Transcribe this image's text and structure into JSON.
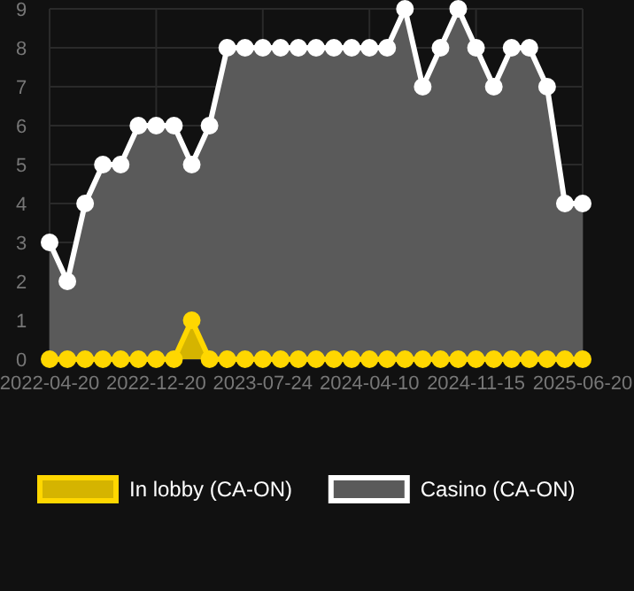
{
  "chart_data": {
    "type": "area",
    "categories": [
      "2022-04-20",
      null,
      null,
      null,
      null,
      null,
      "2022-12-20",
      null,
      null,
      null,
      null,
      null,
      "2023-07-24",
      null,
      null,
      null,
      null,
      null,
      "2024-04-10",
      null,
      null,
      null,
      null,
      null,
      "2024-11-15",
      null,
      null,
      null,
      null,
      null,
      "2025-06-20"
    ],
    "series": [
      {
        "name": "In lobby (CA-ON)",
        "color": "#ffd700",
        "values": [
          0,
          0,
          0,
          0,
          0,
          0,
          0,
          0,
          1,
          0,
          0,
          0,
          0,
          0,
          0,
          0,
          0,
          0,
          0,
          0,
          0,
          0,
          0,
          0,
          0,
          0,
          0,
          0,
          0,
          0,
          0
        ]
      },
      {
        "name": "Casino (CA-ON)",
        "color": "#ffffff",
        "values": [
          3,
          2,
          4,
          5,
          5,
          6,
          6,
          6,
          5,
          6,
          8,
          8,
          8,
          8,
          8,
          8,
          8,
          8,
          8,
          8,
          9,
          7,
          8,
          9,
          8,
          7,
          8,
          8,
          7,
          4,
          4
        ]
      }
    ],
    "ylim": [
      0,
      9
    ],
    "yticks": [
      0,
      1,
      2,
      3,
      4,
      5,
      6,
      7,
      8,
      9
    ],
    "grid": true,
    "legend": "bottom",
    "marker": "circle",
    "line_style": "solid"
  }
}
